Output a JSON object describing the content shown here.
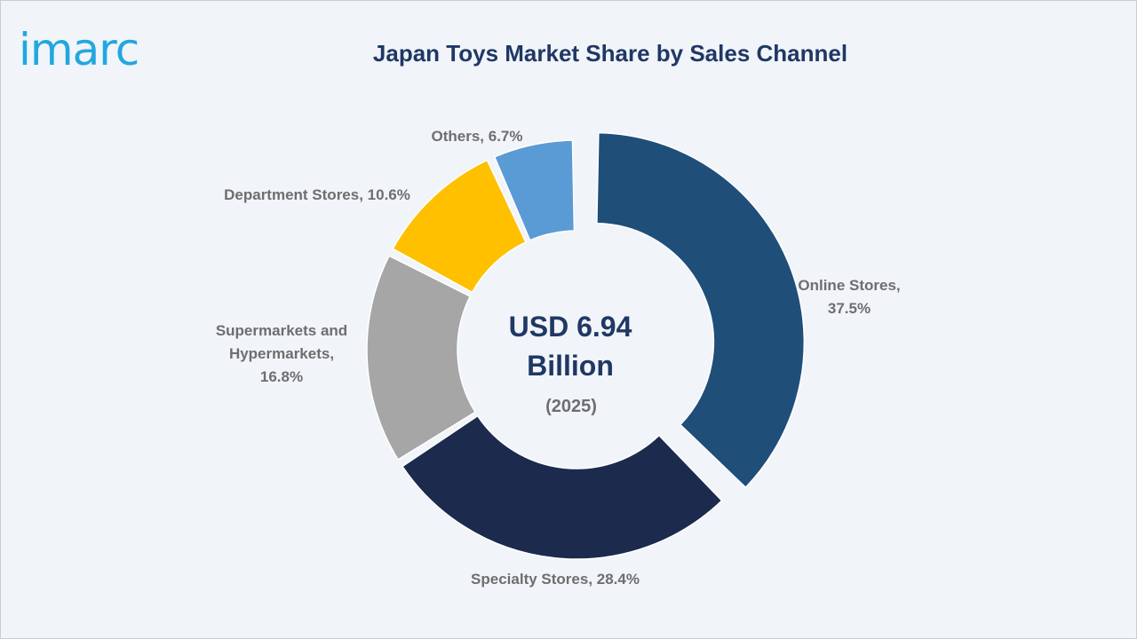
{
  "brand": {
    "logo_text": "imarc",
    "logo_color": "#22a7e0"
  },
  "chart_data": {
    "type": "pie",
    "title": "Japan Toys Market Share by Sales Channel",
    "center_text": {
      "value_line1": "USD 6.94",
      "value_line2": "Billion",
      "year": "(2025)"
    },
    "slices": [
      {
        "label": "Online Stores",
        "value": 37.5,
        "display": [
          "Online Stores,",
          "37.5%"
        ],
        "color": "#1f4e79",
        "exploded": true
      },
      {
        "label": "Specialty Stores",
        "value": 28.4,
        "display": [
          "Specialty Stores, 28.4%"
        ],
        "color": "#1c2a4d",
        "exploded": false
      },
      {
        "label": "Supermarkets and Hypermarkets",
        "value": 16.8,
        "display": [
          "Supermarkets and",
          "Hypermarkets,",
          "16.8%"
        ],
        "color": "#a6a6a6",
        "exploded": false
      },
      {
        "label": "Department Stores",
        "value": 10.6,
        "display": [
          "Department Stores, 10.6%"
        ],
        "color": "#ffc000",
        "exploded": false
      },
      {
        "label": "Others",
        "value": 6.7,
        "display": [
          "Others, 6.7%"
        ],
        "color": "#5b9bd5",
        "exploded": false
      }
    ]
  }
}
